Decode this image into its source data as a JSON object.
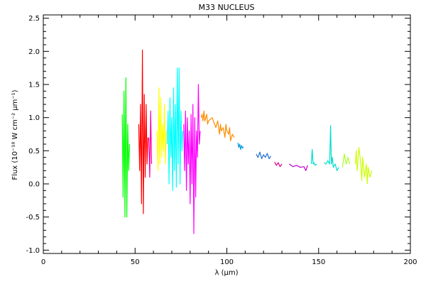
{
  "chart_data": {
    "type": "line",
    "title": "M33 NUCLEUS",
    "xlabel": "λ (μm)",
    "ylabel": "Flux (10⁻¹⁸ W cm⁻² μm⁻¹)",
    "xlim": [
      0,
      200
    ],
    "ylim": [
      -1.05,
      2.55
    ],
    "xticks": [
      0,
      50,
      100,
      150,
      200
    ],
    "xtick_labels": [
      "0",
      "50",
      "100",
      "150",
      "200"
    ],
    "yticks": [
      -1.0,
      -0.5,
      0.0,
      0.5,
      1.0,
      1.5,
      2.0,
      2.5
    ],
    "ytick_labels": [
      "-1.0",
      "-0.5",
      "0.0",
      "0.5",
      "1.0",
      "1.5",
      "2.0",
      "2.5"
    ],
    "grid": false,
    "legend": "none",
    "series": [
      {
        "color": "#00ff00",
        "x": [
          43.0,
          43.5,
          44.0,
          44.5,
          45.0,
          45.5,
          46.0,
          46.5,
          47.0
        ],
        "y": [
          1.05,
          -0.2,
          1.4,
          -0.5,
          1.6,
          -0.5,
          0.9,
          0.2,
          0.6
        ]
      },
      {
        "color": "#ff0000",
        "x": [
          52.0,
          52.5,
          53.0,
          53.5,
          54.0,
          54.5,
          55.0,
          55.5,
          56.0,
          56.5,
          57.0
        ],
        "y": [
          0.9,
          0.2,
          1.2,
          -0.3,
          2.02,
          -0.45,
          1.35,
          0.1,
          1.2,
          0.3,
          0.7
        ]
      },
      {
        "color": "#ff00aa",
        "x": [
          57.5,
          58.0,
          58.5,
          59.0
        ],
        "y": [
          0.7,
          0.1,
          1.1,
          0.3
        ]
      },
      {
        "color": "#ffff00",
        "x": [
          62.0,
          62.5,
          63.0,
          63.5,
          64.0,
          64.5,
          65.0,
          65.5,
          66.0,
          66.5,
          67.0
        ],
        "y": [
          0.8,
          0.2,
          1.45,
          0.3,
          1.3,
          0.4,
          0.9,
          0.5,
          1.2,
          0.3,
          0.8
        ]
      },
      {
        "color": "#00ffff",
        "x": [
          67.5,
          68.0,
          68.5,
          69.0,
          69.5,
          70.0,
          70.5,
          71.0,
          71.5,
          72.0,
          72.5,
          73.0,
          73.5,
          74.0,
          74.5,
          75.0,
          75.5,
          76.0
        ],
        "y": [
          0.6,
          1.1,
          0.0,
          1.3,
          0.4,
          1.0,
          -0.1,
          1.45,
          0.2,
          1.2,
          -0.05,
          1.75,
          0.3,
          1.75,
          0.0,
          1.1,
          0.5,
          0.8
        ]
      },
      {
        "color": "#ff00ff",
        "x": [
          76.5,
          77.0,
          77.5,
          78.0,
          78.5,
          79.0,
          79.5,
          80.0,
          80.5,
          81.0,
          81.5,
          82.0,
          82.5,
          83.0,
          83.5,
          84.0,
          84.5,
          85.0,
          85.5
        ],
        "y": [
          0.9,
          0.2,
          1.1,
          -0.1,
          1.0,
          0.3,
          0.8,
          -0.3,
          1.05,
          0.0,
          1.2,
          -0.75,
          1.0,
          -0.2,
          0.8,
          0.4,
          1.5,
          0.6,
          0.8
        ]
      },
      {
        "color": "#ff8c00",
        "x": [
          86.0,
          86.5,
          87.0,
          87.5,
          88.0,
          88.5,
          89.0,
          89.5,
          90.0,
          92.0,
          94.0,
          95.0,
          96.0,
          96.5,
          97.0,
          98.0,
          99.0,
          99.5,
          100.0,
          101.0,
          101.5,
          102.0,
          103.0,
          104.0
        ],
        "y": [
          1.0,
          1.05,
          0.95,
          1.1,
          0.95,
          1.0,
          1.05,
          0.9,
          0.95,
          1.0,
          0.85,
          0.95,
          0.75,
          0.9,
          0.8,
          0.85,
          0.7,
          0.9,
          0.8,
          0.75,
          0.85,
          0.65,
          0.75,
          0.7
        ]
      },
      {
        "color": "#0099dd",
        "x": [
          106.0,
          106.5,
          107.0,
          107.5,
          108.0,
          108.5,
          109.0
        ],
        "y": [
          0.62,
          0.55,
          0.6,
          0.52,
          0.58,
          0.54,
          0.56
        ]
      },
      {
        "color": "#1e6fd0",
        "x": [
          116.0,
          117.0,
          118.0,
          119.0,
          120.0,
          121.0,
          122.0,
          123.0,
          124.0
        ],
        "y": [
          0.45,
          0.4,
          0.48,
          0.38,
          0.44,
          0.4,
          0.46,
          0.38,
          0.42
        ]
      },
      {
        "color": "#dd0088",
        "x": [
          126.0,
          127.0,
          128.0,
          129.0,
          130.0
        ],
        "y": [
          0.33,
          0.28,
          0.32,
          0.26,
          0.3
        ]
      },
      {
        "color": "#bb00cc",
        "x": [
          134.0,
          136.0,
          138.0,
          140.0,
          142.0,
          143.0,
          144.0
        ],
        "y": [
          0.3,
          0.26,
          0.28,
          0.25,
          0.26,
          0.2,
          0.28
        ]
      },
      {
        "color": "#00ddcc",
        "x": [
          146.0,
          146.5,
          147.0,
          147.5,
          148.0,
          149.0
        ],
        "y": [
          0.3,
          0.52,
          0.3,
          0.32,
          0.28,
          0.3
        ]
      },
      {
        "color": "#00ddcc",
        "x": [
          153.0,
          154.0,
          155.0,
          156.0,
          156.5,
          157.0,
          157.5,
          158.0,
          159.0,
          160.0,
          161.0
        ],
        "y": [
          0.32,
          0.3,
          0.35,
          0.3,
          0.88,
          0.3,
          0.4,
          0.25,
          0.3,
          0.2,
          0.25
        ]
      },
      {
        "color": "#aaff22",
        "x": [
          163.0,
          164.0,
          165.0,
          166.0,
          167.0
        ],
        "y": [
          0.25,
          0.45,
          0.3,
          0.4,
          0.3
        ]
      },
      {
        "color": "#ccff00",
        "x": [
          170.0,
          170.5,
          171.0,
          172.0,
          173.0,
          173.5,
          174.0,
          175.0,
          176.0,
          176.5,
          177.0,
          178.0,
          179.0
        ],
        "y": [
          0.3,
          0.5,
          0.2,
          0.55,
          0.3,
          0.05,
          0.4,
          0.1,
          0.3,
          0.0,
          0.25,
          0.1,
          0.2
        ]
      }
    ]
  }
}
